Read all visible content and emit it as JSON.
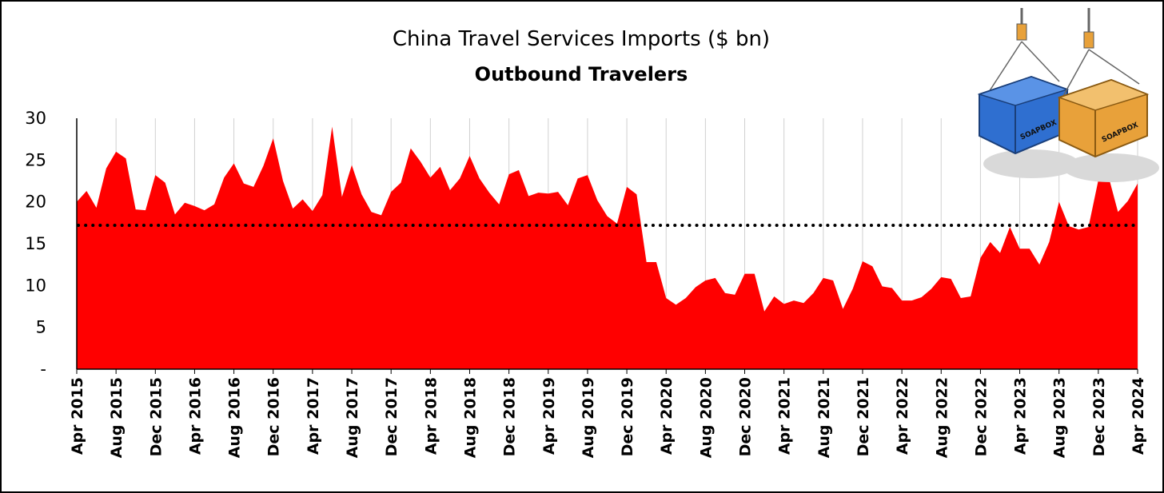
{
  "chart_data": {
    "type": "area",
    "title": "China Travel Services Imports ($ bn)",
    "subtitle": "Outbound Travelers",
    "xlabel": "",
    "ylabel": "",
    "ylim": [
      0,
      30
    ],
    "y_ticks": [
      {
        "value": 0,
        "label": "-"
      },
      {
        "value": 5,
        "label": "5"
      },
      {
        "value": 10,
        "label": "10"
      },
      {
        "value": 15,
        "label": "15"
      },
      {
        "value": 20,
        "label": "20"
      },
      {
        "value": 25,
        "label": "25"
      },
      {
        "value": 30,
        "label": "30"
      }
    ],
    "x_tick_labels": [
      "Apr 2015",
      "Aug 2015",
      "Dec 2015",
      "Apr 2016",
      "Aug 2016",
      "Dec 2016",
      "Apr 2017",
      "Aug 2017",
      "Dec 2017",
      "Apr 2018",
      "Aug 2018",
      "Dec 2018",
      "Apr 2019",
      "Aug 2019",
      "Dec 2019",
      "Apr 2020",
      "Aug 2020",
      "Dec 2020",
      "Apr 2021",
      "Aug 2021",
      "Dec 2021",
      "Apr 2022",
      "Aug 2022",
      "Dec 2022",
      "Apr 2023",
      "Aug 2023",
      "Dec 2023",
      "Apr 2024"
    ],
    "x_start": "Apr 2015",
    "x_end": "Apr 2024",
    "grid": "vertical",
    "series": [
      {
        "color": "#ff0000",
        "values": [
          20.0,
          21.3,
          19.3,
          24.0,
          26.0,
          25.2,
          19.1,
          19.0,
          23.2,
          22.3,
          18.5,
          19.9,
          19.5,
          19.0,
          19.7,
          22.9,
          24.6,
          22.2,
          21.8,
          24.3,
          27.6,
          22.5,
          19.2,
          20.3,
          18.9,
          20.8,
          29.0,
          20.6,
          24.4,
          20.9,
          18.8,
          18.4,
          21.2,
          22.3,
          26.4,
          24.8,
          22.9,
          24.2,
          21.4,
          22.8,
          25.5,
          22.8,
          21.1,
          19.7,
          23.3,
          23.8,
          20.7,
          21.1,
          21.0,
          21.2,
          19.6,
          22.8,
          23.2,
          20.2,
          18.3,
          17.4,
          21.8,
          20.9,
          12.8,
          12.8,
          8.5,
          7.7,
          8.5,
          9.8,
          10.6,
          10.9,
          9.1,
          8.9,
          11.4,
          11.4,
          6.9,
          8.7,
          7.8,
          8.2,
          7.9,
          9.1,
          10.9,
          10.6,
          7.2,
          9.6,
          12.9,
          12.3,
          9.9,
          9.7,
          8.2,
          8.2,
          8.6,
          9.6,
          11.0,
          10.8,
          8.5,
          8.7,
          13.3,
          15.2,
          13.9,
          17.0,
          14.4,
          14.4,
          12.5,
          15.2,
          20.0,
          17.1,
          16.7,
          17.0,
          22.6,
          23.2,
          18.8,
          20.1,
          22.2
        ]
      }
    ],
    "reference_line": {
      "value": 17.2,
      "style": "dotted",
      "color": "#000000"
    }
  },
  "logo": {
    "text_left": "SOAPBOX",
    "text_right": "SOAPBOX",
    "color_left": "#2f6fd0",
    "color_right": "#e8a13a"
  }
}
